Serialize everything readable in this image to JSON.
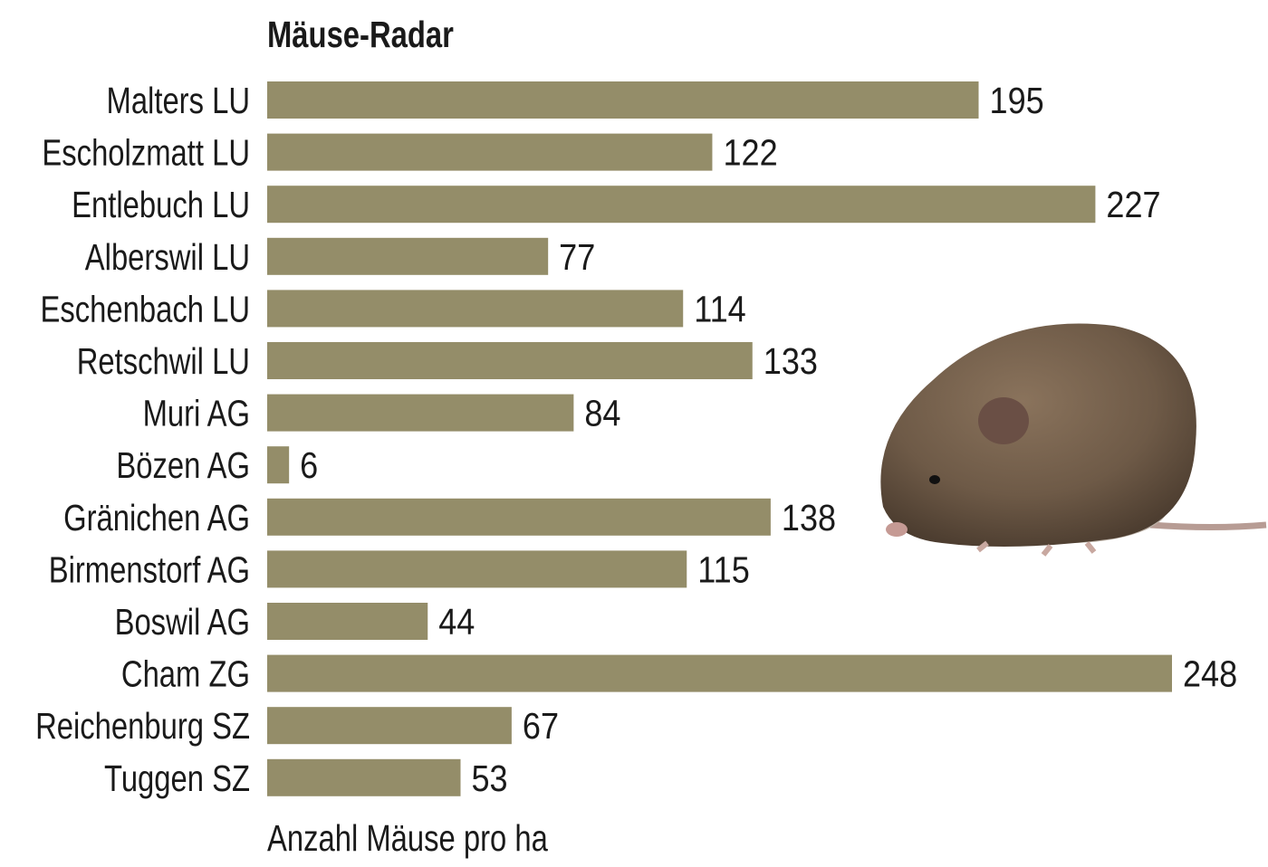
{
  "chart_data": {
    "type": "bar",
    "orientation": "horizontal",
    "title": "Mäuse-Radar",
    "xlabel": "Anzahl Mäuse pro ha",
    "ylabel": "",
    "categories": [
      "Malters LU",
      "Escholzmatt LU",
      "Entlebuch LU",
      "Alberswil LU",
      "Eschenbach LU",
      "Retschwil LU",
      "Muri AG",
      "Bözen AG",
      "Gränichen AG",
      "Birmenstorf AG",
      "Boswil AG",
      "Cham ZG",
      "Reichenburg SZ",
      "Tuggen SZ"
    ],
    "values": [
      195,
      122,
      227,
      77,
      114,
      133,
      84,
      6,
      138,
      115,
      44,
      248,
      67,
      53
    ],
    "xlim": [
      0,
      248
    ],
    "grid": false,
    "data_labels": true,
    "colors": {
      "bar": "#948d69",
      "text": "#1a1a1a"
    }
  },
  "illustration": {
    "icon": "mouse-photo"
  }
}
